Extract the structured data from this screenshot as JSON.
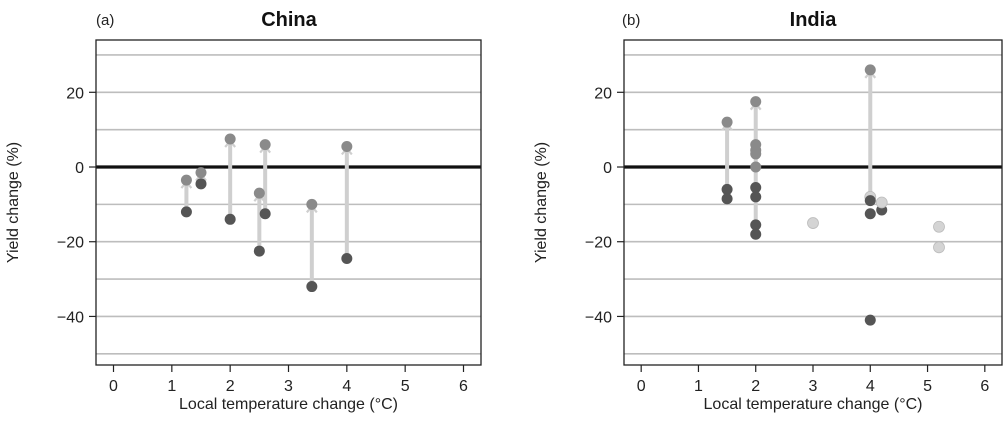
{
  "chart_data": [
    {
      "type": "scatter",
      "panel_label": "(a)",
      "title": "China",
      "xlabel": "Local temperature change (°C)",
      "ylabel": "Yield change (%)",
      "xlim": [
        -0.3,
        6.3
      ],
      "ylim": [
        -53,
        34
      ],
      "xticks": [
        0,
        1,
        2,
        3,
        4,
        5,
        6
      ],
      "yticks": [
        -40,
        -20,
        0,
        20
      ],
      "grid": "horizontal every 10",
      "zero_line": true,
      "colors": {
        "low": "#555555",
        "high": "#8a8a8a",
        "connector": "#cfcfcf"
      },
      "pairs": [
        {
          "x": 1.25,
          "low": -12,
          "high": -3.5
        },
        {
          "x": 1.5,
          "low": -4.5,
          "high": -1.5
        },
        {
          "x": 2.0,
          "low": -14,
          "high": 7.5
        },
        {
          "x": 2.5,
          "low": -22.5,
          "high": -7
        },
        {
          "x": 2.6,
          "low": -12.5,
          "high": 6
        },
        {
          "x": 3.4,
          "low": -32,
          "high": -10
        },
        {
          "x": 4.0,
          "low": -24.5,
          "high": 5.5
        }
      ],
      "extra_points": []
    },
    {
      "type": "scatter",
      "panel_label": "(b)",
      "title": "India",
      "xlabel": "Local temperature change (°C)",
      "ylabel": "Yield change (%)",
      "xlim": [
        -0.3,
        6.3
      ],
      "ylim": [
        -53,
        34
      ],
      "xticks": [
        0,
        1,
        2,
        3,
        4,
        5,
        6
      ],
      "yticks": [
        -40,
        -20,
        0,
        20
      ],
      "grid": "horizontal every 10",
      "zero_line": true,
      "colors": {
        "low": "#555555",
        "high": "#8a8a8a",
        "connector": "#cfcfcf",
        "single": "#d4d4d4"
      },
      "pairs": [
        {
          "x": 1.5,
          "low": -8.5,
          "high": 12
        },
        {
          "x": 2.0,
          "low": -18,
          "high": 17.5
        },
        {
          "x": 4.0,
          "low": -9,
          "high": 26
        }
      ],
      "extra_points": [
        {
          "x": 1.5,
          "y": -6,
          "tone": "low"
        },
        {
          "x": 2.0,
          "y": -15.5,
          "tone": "low"
        },
        {
          "x": 2.0,
          "y": -8,
          "tone": "low"
        },
        {
          "x": 2.0,
          "y": -5.5,
          "tone": "low"
        },
        {
          "x": 2.0,
          "y": 0,
          "tone": "high"
        },
        {
          "x": 2.0,
          "y": 3.5,
          "tone": "high"
        },
        {
          "x": 2.0,
          "y": 6,
          "tone": "high"
        },
        {
          "x": 2.0,
          "y": 4.5,
          "tone": "high"
        },
        {
          "x": 3.0,
          "y": -15,
          "tone": "single"
        },
        {
          "x": 4.0,
          "y": -41,
          "tone": "low"
        },
        {
          "x": 4.0,
          "y": -12.5,
          "tone": "low"
        },
        {
          "x": 4.0,
          "y": -8,
          "tone": "single"
        },
        {
          "x": 4.2,
          "y": -11.5,
          "tone": "low"
        },
        {
          "x": 4.2,
          "y": -9.5,
          "tone": "single"
        },
        {
          "x": 5.2,
          "y": -16,
          "tone": "single"
        },
        {
          "x": 5.2,
          "y": -21.5,
          "tone": "single"
        }
      ]
    }
  ]
}
